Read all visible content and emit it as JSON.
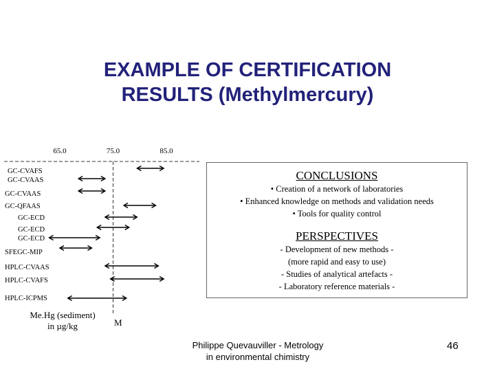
{
  "slide": {
    "title_line1": "EXAMPLE OF CERTIFICATION",
    "title_line2": "RESULTS (Methylmercury)",
    "footer_line1": "Philippe Quevauviller - Metrology",
    "footer_line2": "in environmental chimistry",
    "page_number": "46",
    "title_color": "#22227a"
  },
  "chart_data": {
    "type": "scatter",
    "axis_ticks": [
      "65.0",
      "75.0",
      "85.0"
    ],
    "xlim": [
      65,
      85
    ],
    "certified_value_label": "M",
    "certified_value": 75.0,
    "unit_label_line1": "Me.Hg (sediment)",
    "unit_label_line2": "in µg/kg",
    "series": [
      {
        "label": "GC-CVAFS",
        "low": 79.5,
        "high": 84.5
      },
      {
        "label": "GC-CVAAS",
        "low": 68.5,
        "high": 73.5
      },
      {
        "label": "GC-CVAAS",
        "low": 68.5,
        "high": 73.5
      },
      {
        "label": "GC-QFAAS",
        "low": 77.0,
        "high": 83.0
      },
      {
        "label": "GC-ECD",
        "low": 73.5,
        "high": 79.5
      },
      {
        "label": "GC-ECD",
        "low": 72.0,
        "high": 78.0
      },
      {
        "label": "GC-ECD",
        "low": 63.0,
        "high": 72.5
      },
      {
        "label": "SFEGC-MIP",
        "low": 65.0,
        "high": 71.0
      },
      {
        "label": "HPLC-CVAAS",
        "low": 73.5,
        "high": 83.5
      },
      {
        "label": "HPLC-CVAFS",
        "low": 74.5,
        "high": 84.5
      },
      {
        "label": "HPLC-ICPMS",
        "low": 66.5,
        "high": 77.5
      }
    ]
  },
  "conclusions": {
    "heading": "CONCLUSIONS",
    "items": [
      "• Creation of a network of laboratories",
      "• Enhanced knowledge on methods and validation needs",
      "• Tools for quality control"
    ]
  },
  "perspectives": {
    "heading": "PERSPECTIVES",
    "items": [
      "- Development of new methods -",
      "(more rapid and easy to use)",
      "- Studies of analytical artefacts -",
      "- Laboratory reference materials -"
    ]
  }
}
